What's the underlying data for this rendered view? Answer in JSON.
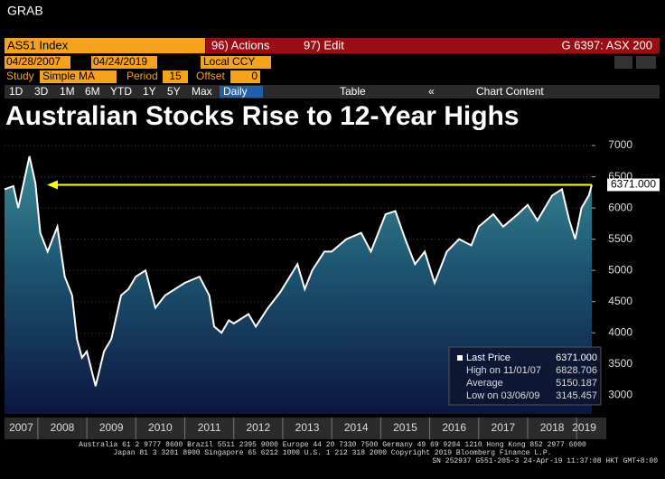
{
  "header": {
    "title": "GRAB"
  },
  "toolbar": {
    "ticker": "AS51 Index",
    "actions": "96) Actions",
    "edit": "97) Edit",
    "security": "G 6397: ASX 200",
    "start_date": "04/28/2007",
    "end_date": "04/24/2019",
    "currency": "Local CCY",
    "study_label": "Study",
    "study": "Simple MA",
    "period_label": "Period",
    "period": "15",
    "offset_label": "Offset",
    "offset": "0",
    "ranges": [
      "1D",
      "3D",
      "1M",
      "6M",
      "YTD",
      "1Y",
      "5Y",
      "Max"
    ],
    "frequency": "Daily",
    "table": "Table",
    "chart_content": "Chart Content"
  },
  "chart_data": {
    "type": "line",
    "title": "Australian Stocks Rise to 12-Year Highs",
    "x": [
      2007.32,
      2007.5,
      2007.6,
      2007.83,
      2007.95,
      2008.05,
      2008.2,
      2008.4,
      2008.55,
      2008.7,
      2008.8,
      2008.9,
      2009.0,
      2009.18,
      2009.35,
      2009.5,
      2009.7,
      2009.85,
      2010.0,
      2010.2,
      2010.4,
      2010.6,
      2010.8,
      2011.0,
      2011.3,
      2011.5,
      2011.6,
      2011.75,
      2011.9,
      2012.0,
      2012.3,
      2012.45,
      2012.7,
      2012.95,
      2013.3,
      2013.45,
      2013.6,
      2013.85,
      2014.0,
      2014.3,
      2014.6,
      2014.8,
      2015.1,
      2015.3,
      2015.5,
      2015.7,
      2015.9,
      2016.1,
      2016.35,
      2016.6,
      2016.85,
      2017.0,
      2017.3,
      2017.5,
      2017.8,
      2018.0,
      2018.2,
      2018.5,
      2018.7,
      2018.85,
      2018.97,
      2019.1,
      2019.25,
      2019.31
    ],
    "series": [
      {
        "name": "Last Price",
        "color": "#ffffff",
        "values": [
          6300,
          6350,
          6000,
          6829,
          6400,
          5600,
          5300,
          5700,
          4900,
          4600,
          3900,
          3600,
          3700,
          3145,
          3700,
          3900,
          4600,
          4700,
          4900,
          5000,
          4400,
          4600,
          4700,
          4800,
          4900,
          4600,
          4100,
          4000,
          4200,
          4150,
          4300,
          4100,
          4400,
          4650,
          5100,
          4700,
          5000,
          5300,
          5300,
          5500,
          5600,
          5300,
          5900,
          5950,
          5500,
          5100,
          5300,
          4800,
          5300,
          5500,
          5400,
          5700,
          5900,
          5700,
          5900,
          6050,
          5800,
          6200,
          6300,
          5800,
          5500,
          6000,
          6200,
          6371
        ]
      }
    ],
    "xlim": [
      2007.32,
      2019.31
    ],
    "xticks": [
      2007,
      2008,
      2009,
      2010,
      2011,
      2012,
      2013,
      2014,
      2015,
      2016,
      2017,
      2018,
      2019
    ],
    "ylim": [
      2700,
      7160
    ],
    "yticks": [
      3000,
      3500,
      4000,
      4500,
      5000,
      5500,
      6000,
      6500,
      7000
    ],
    "reference_line": {
      "value": 6371,
      "label": "6371.000",
      "color": "#ffff00"
    },
    "stats": [
      {
        "label": "High on 11/01/07",
        "value": "6828.706"
      },
      {
        "label": "Average",
        "value": "5150.187"
      },
      {
        "label": "Low on 03/06/09",
        "value": "3145.457"
      }
    ],
    "last_value_label": "6371.000"
  },
  "footer": {
    "lines": [
      "Australia 61 2 9777 8600 Brazil 5511 2395 9000 Europe 44 20 7330 7500 Germany 49 69 9204 1210 Hong Kong 852 2977 6000",
      "Japan 81 3 3201 8900       Singapore 65 6212 1000       U.S. 1 212 318 2000       Copyright 2019 Bloomberg Finance L.P.",
      "SN 252937 G551-205-3 24-Apr-19 11:37:08 HKT  GMT+8:00"
    ]
  }
}
